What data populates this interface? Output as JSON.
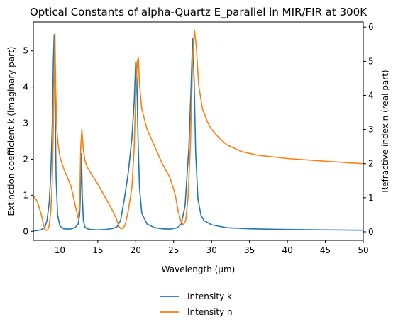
{
  "chart_data": {
    "type": "line",
    "title": "Optical Constants of alpha-Quartz E_parallel in MIR/FIR at 300K",
    "xlabel": "Wavelength (μm)",
    "ylabel_left": "Extinction coefficient k (imaginary part)",
    "ylabel_right": "Refractive index n (real part)",
    "xlim": [
      6.5,
      50
    ],
    "ylim_left": [
      -0.25,
      5.8
    ],
    "ylim_right": [
      -0.25,
      6.15
    ],
    "xticks": [
      10,
      15,
      20,
      25,
      30,
      35,
      40,
      45,
      50
    ],
    "yticks_left": [
      0,
      1,
      2,
      3,
      4,
      5
    ],
    "yticks_right": [
      0,
      1,
      2,
      3,
      4,
      5,
      6
    ],
    "grid": false,
    "legend_position": "below the plot, center",
    "series": [
      {
        "name": "Intensity k",
        "axis": "left",
        "color": "#1f77b4",
        "x": [
          6.5,
          7.0,
          7.5,
          8.0,
          8.3,
          8.6,
          8.8,
          9.0,
          9.15,
          9.25,
          9.35,
          9.5,
          9.7,
          10.0,
          10.5,
          11.0,
          11.5,
          12.0,
          12.4,
          12.6,
          12.75,
          12.85,
          12.95,
          13.1,
          13.3,
          13.6,
          14.0,
          15.0,
          16.0,
          17.0,
          17.5,
          18.0,
          18.5,
          19.0,
          19.5,
          19.8,
          20.0,
          20.15,
          20.3,
          20.5,
          20.8,
          21.5,
          22.5,
          23.5,
          24.5,
          25.5,
          26.0,
          26.5,
          27.0,
          27.3,
          27.5,
          27.7,
          27.9,
          28.2,
          28.6,
          29.0,
          30.0,
          32.0,
          35.0,
          40.0,
          45.0,
          50.0
        ],
        "values": [
          0.01,
          0.02,
          0.04,
          0.1,
          0.3,
          0.8,
          1.6,
          3.0,
          4.8,
          5.45,
          4.0,
          1.5,
          0.45,
          0.15,
          0.07,
          0.06,
          0.07,
          0.1,
          0.2,
          0.45,
          1.2,
          2.15,
          1.0,
          0.3,
          0.12,
          0.07,
          0.05,
          0.04,
          0.05,
          0.08,
          0.12,
          0.3,
          0.9,
          1.6,
          2.6,
          3.6,
          4.7,
          4.2,
          2.6,
          1.2,
          0.5,
          0.2,
          0.1,
          0.07,
          0.06,
          0.1,
          0.2,
          0.7,
          2.3,
          4.0,
          5.35,
          4.2,
          2.2,
          0.9,
          0.45,
          0.3,
          0.18,
          0.1,
          0.07,
          0.05,
          0.04,
          0.03
        ]
      },
      {
        "name": "Intensity n",
        "axis": "right",
        "color": "#ff7f0e",
        "x": [
          6.5,
          7.0,
          7.5,
          7.8,
          8.0,
          8.2,
          8.4,
          8.6,
          8.8,
          9.0,
          9.2,
          9.35,
          9.45,
          9.6,
          9.8,
          10.0,
          10.5,
          11.0,
          11.5,
          12.0,
          12.4,
          12.6,
          12.75,
          12.9,
          13.0,
          13.1,
          13.3,
          13.6,
          14.0,
          15.0,
          16.0,
          17.0,
          17.5,
          17.8,
          18.0,
          18.3,
          18.6,
          19.0,
          19.5,
          19.8,
          20.0,
          20.2,
          20.35,
          20.5,
          20.8,
          21.5,
          22.5,
          23.5,
          24.5,
          25.2,
          25.6,
          26.0,
          26.3,
          26.6,
          26.9,
          27.2,
          27.5,
          27.75,
          28.0,
          28.3,
          28.8,
          29.5,
          30.0,
          31.0,
          32.0,
          34.0,
          36.0,
          40.0,
          45.0,
          50.0
        ],
        "values": [
          1.05,
          0.9,
          0.55,
          0.25,
          0.08,
          0.04,
          0.06,
          0.2,
          0.6,
          1.5,
          3.8,
          5.8,
          4.2,
          3.0,
          2.5,
          2.2,
          1.85,
          1.6,
          1.3,
          0.8,
          0.4,
          0.7,
          2.5,
          3.0,
          2.7,
          2.4,
          2.1,
          1.9,
          1.75,
          1.4,
          1.0,
          0.6,
          0.35,
          0.15,
          0.1,
          0.1,
          0.2,
          0.6,
          1.3,
          2.5,
          4.0,
          5.0,
          5.1,
          4.3,
          3.6,
          3.0,
          2.5,
          2.0,
          1.6,
          1.1,
          0.6,
          0.28,
          0.2,
          0.35,
          1.0,
          2.5,
          5.0,
          5.9,
          5.4,
          4.3,
          3.6,
          3.2,
          3.0,
          2.75,
          2.55,
          2.35,
          2.25,
          2.15,
          2.07,
          2.0
        ]
      }
    ]
  }
}
